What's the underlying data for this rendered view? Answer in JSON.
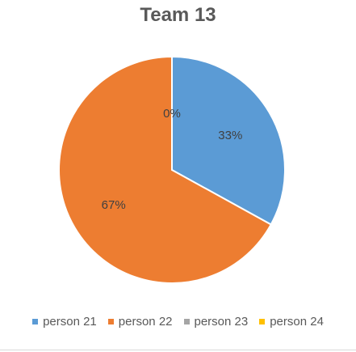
{
  "chart_data": {
    "type": "pie",
    "title": "Team 13",
    "categories": [
      "person 21",
      "person 22",
      "person 23",
      "person 24"
    ],
    "values": [
      33,
      67,
      0,
      0
    ],
    "data_labels": [
      "33%",
      "67%",
      "0%",
      ""
    ],
    "colors": [
      "#5B9BD5",
      "#ED7D31",
      "#A5A5A5",
      "#FFC000"
    ],
    "legend_position": "bottom"
  }
}
